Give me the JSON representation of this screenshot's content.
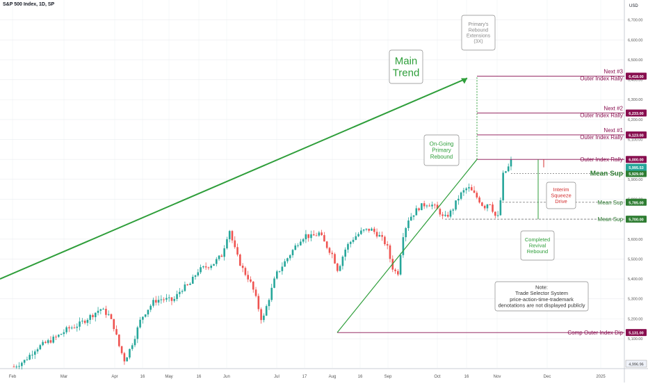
{
  "header": {
    "symbol_title": "S&P 500 Index, 1D, SP",
    "currency": "USD"
  },
  "colors": {
    "up": "#26a69a",
    "down": "#ef5350",
    "trend": "#2e9e3a",
    "resistance": "#880e4f",
    "support": "#2e7d32",
    "grid": "#e9ecef"
  },
  "chart_data": {
    "type": "candlestick",
    "ylim": [
      4950,
      6800
    ],
    "y_ticks": [
      "6,700.00",
      "6,600.00",
      "6,500.00",
      "6,400.00",
      "6,300.00",
      "6,200.00",
      "6,100.00",
      "6,000.00",
      "5,900.00",
      "5,800.00",
      "5,700.00",
      "5,600.00",
      "5,500.00",
      "5,400.00",
      "5,300.00",
      "5,200.00",
      "5,100.00"
    ],
    "x_ticks": [
      "Feb",
      "Mar",
      "Apr",
      "16",
      "May",
      "16",
      "Jun",
      "Jul",
      "17",
      "Aug",
      "16",
      "Sep",
      "Oct",
      "16",
      "Nov",
      "Dec",
      "2025"
    ],
    "path": [
      [
        0,
        4960
      ],
      [
        8,
        4990
      ],
      [
        16,
        5050
      ],
      [
        24,
        5080
      ],
      [
        32,
        5110
      ],
      [
        40,
        5150
      ],
      [
        48,
        5170
      ],
      [
        56,
        5210
      ],
      [
        64,
        5250
      ],
      [
        70,
        5220
      ],
      [
        74,
        5160
      ],
      [
        78,
        5060
      ],
      [
        82,
        4990
      ],
      [
        86,
        5050
      ],
      [
        90,
        5120
      ],
      [
        94,
        5200
      ],
      [
        98,
        5240
      ],
      [
        104,
        5290
      ],
      [
        110,
        5300
      ],
      [
        118,
        5290
      ],
      [
        124,
        5350
      ],
      [
        130,
        5370
      ],
      [
        136,
        5440
      ],
      [
        142,
        5460
      ],
      [
        148,
        5480
      ],
      [
        154,
        5520
      ],
      [
        158,
        5620
      ],
      [
        160,
        5650
      ],
      [
        162,
        5580
      ],
      [
        166,
        5500
      ],
      [
        170,
        5440
      ],
      [
        174,
        5400
      ],
      [
        178,
        5330
      ],
      [
        184,
        5180
      ],
      [
        186,
        5240
      ],
      [
        190,
        5330
      ],
      [
        194,
        5420
      ],
      [
        200,
        5480
      ],
      [
        206,
        5540
      ],
      [
        212,
        5600
      ],
      [
        216,
        5620
      ],
      [
        220,
        5610
      ],
      [
        226,
        5630
      ],
      [
        230,
        5580
      ],
      [
        236,
        5520
      ],
      [
        240,
        5440
      ],
      [
        242,
        5490
      ],
      [
        246,
        5560
      ],
      [
        252,
        5610
      ],
      [
        258,
        5640
      ],
      [
        264,
        5650
      ],
      [
        270,
        5620
      ],
      [
        276,
        5570
      ],
      [
        280,
        5460
      ],
      [
        284,
        5420
      ],
      [
        288,
        5620
      ],
      [
        292,
        5700
      ],
      [
        296,
        5730
      ],
      [
        300,
        5760
      ],
      [
        306,
        5780
      ],
      [
        310,
        5770
      ],
      [
        316,
        5730
      ],
      [
        318,
        5700
      ],
      [
        324,
        5740
      ],
      [
        330,
        5820
      ],
      [
        336,
        5860
      ],
      [
        340,
        5830
      ],
      [
        344,
        5800
      ],
      [
        348,
        5760
      ],
      [
        352,
        5790
      ],
      [
        356,
        5720
      ],
      [
        358,
        5700
      ],
      [
        360,
        5780
      ],
      [
        362,
        5920
      ],
      [
        366,
        5960
      ],
      [
        368,
        5990
      ]
    ],
    "candles_count": 190,
    "series_name": "S&P 500 Index",
    "last_value": "5,995.53",
    "horizontal_levels": [
      {
        "value": 6418,
        "price_label": "6,418.00",
        "line1": "Next #3",
        "line2": "Outer Index Rally",
        "kind": "resistance"
      },
      {
        "value": 6233,
        "price_label": "6,233.00",
        "line1": "Next #2",
        "line2": "Outer Index Rally",
        "kind": "resistance"
      },
      {
        "value": 6123,
        "price_label": "6,123.00",
        "line1": "Next #1",
        "line2": "Outer Index Rally",
        "kind": "resistance"
      },
      {
        "value": 6000,
        "price_label": "6,000.00",
        "line1": "",
        "line2": "Outer Index Rally",
        "kind": "resistance"
      },
      {
        "value": 5929,
        "price_label": "5,929.00",
        "line1": "",
        "line2": "Mean Sup",
        "kind": "support-bold"
      },
      {
        "value": 5785,
        "price_label": "5,785.00",
        "line1": "",
        "line2": "Mean Sup",
        "kind": "support"
      },
      {
        "value": 5700,
        "price_label": "5,700.00",
        "line1": "",
        "line2": "Mean Sup",
        "kind": "support"
      },
      {
        "value": 5131,
        "price_label": "5,131.00",
        "line1": "",
        "line2": "Comp Outer Index Dip",
        "kind": "resistance"
      }
    ],
    "bottom_label": "4,996.96",
    "annotations": {
      "main_trend": [
        "Main",
        "Trend"
      ],
      "primary_rebound": [
        "On-Going",
        "Primary",
        "Rebound"
      ],
      "extensions": [
        "Primary's",
        "Rebound",
        "Extensions",
        "(3X)"
      ],
      "interim": [
        "Interim",
        "Squeeze",
        "Drive"
      ],
      "completed": [
        "Completed",
        "Revival",
        "Rebound"
      ],
      "note": [
        "Note:",
        "Trade Selector System",
        "price-action-time-trademark",
        "denotations are not displayed publicly"
      ]
    }
  }
}
